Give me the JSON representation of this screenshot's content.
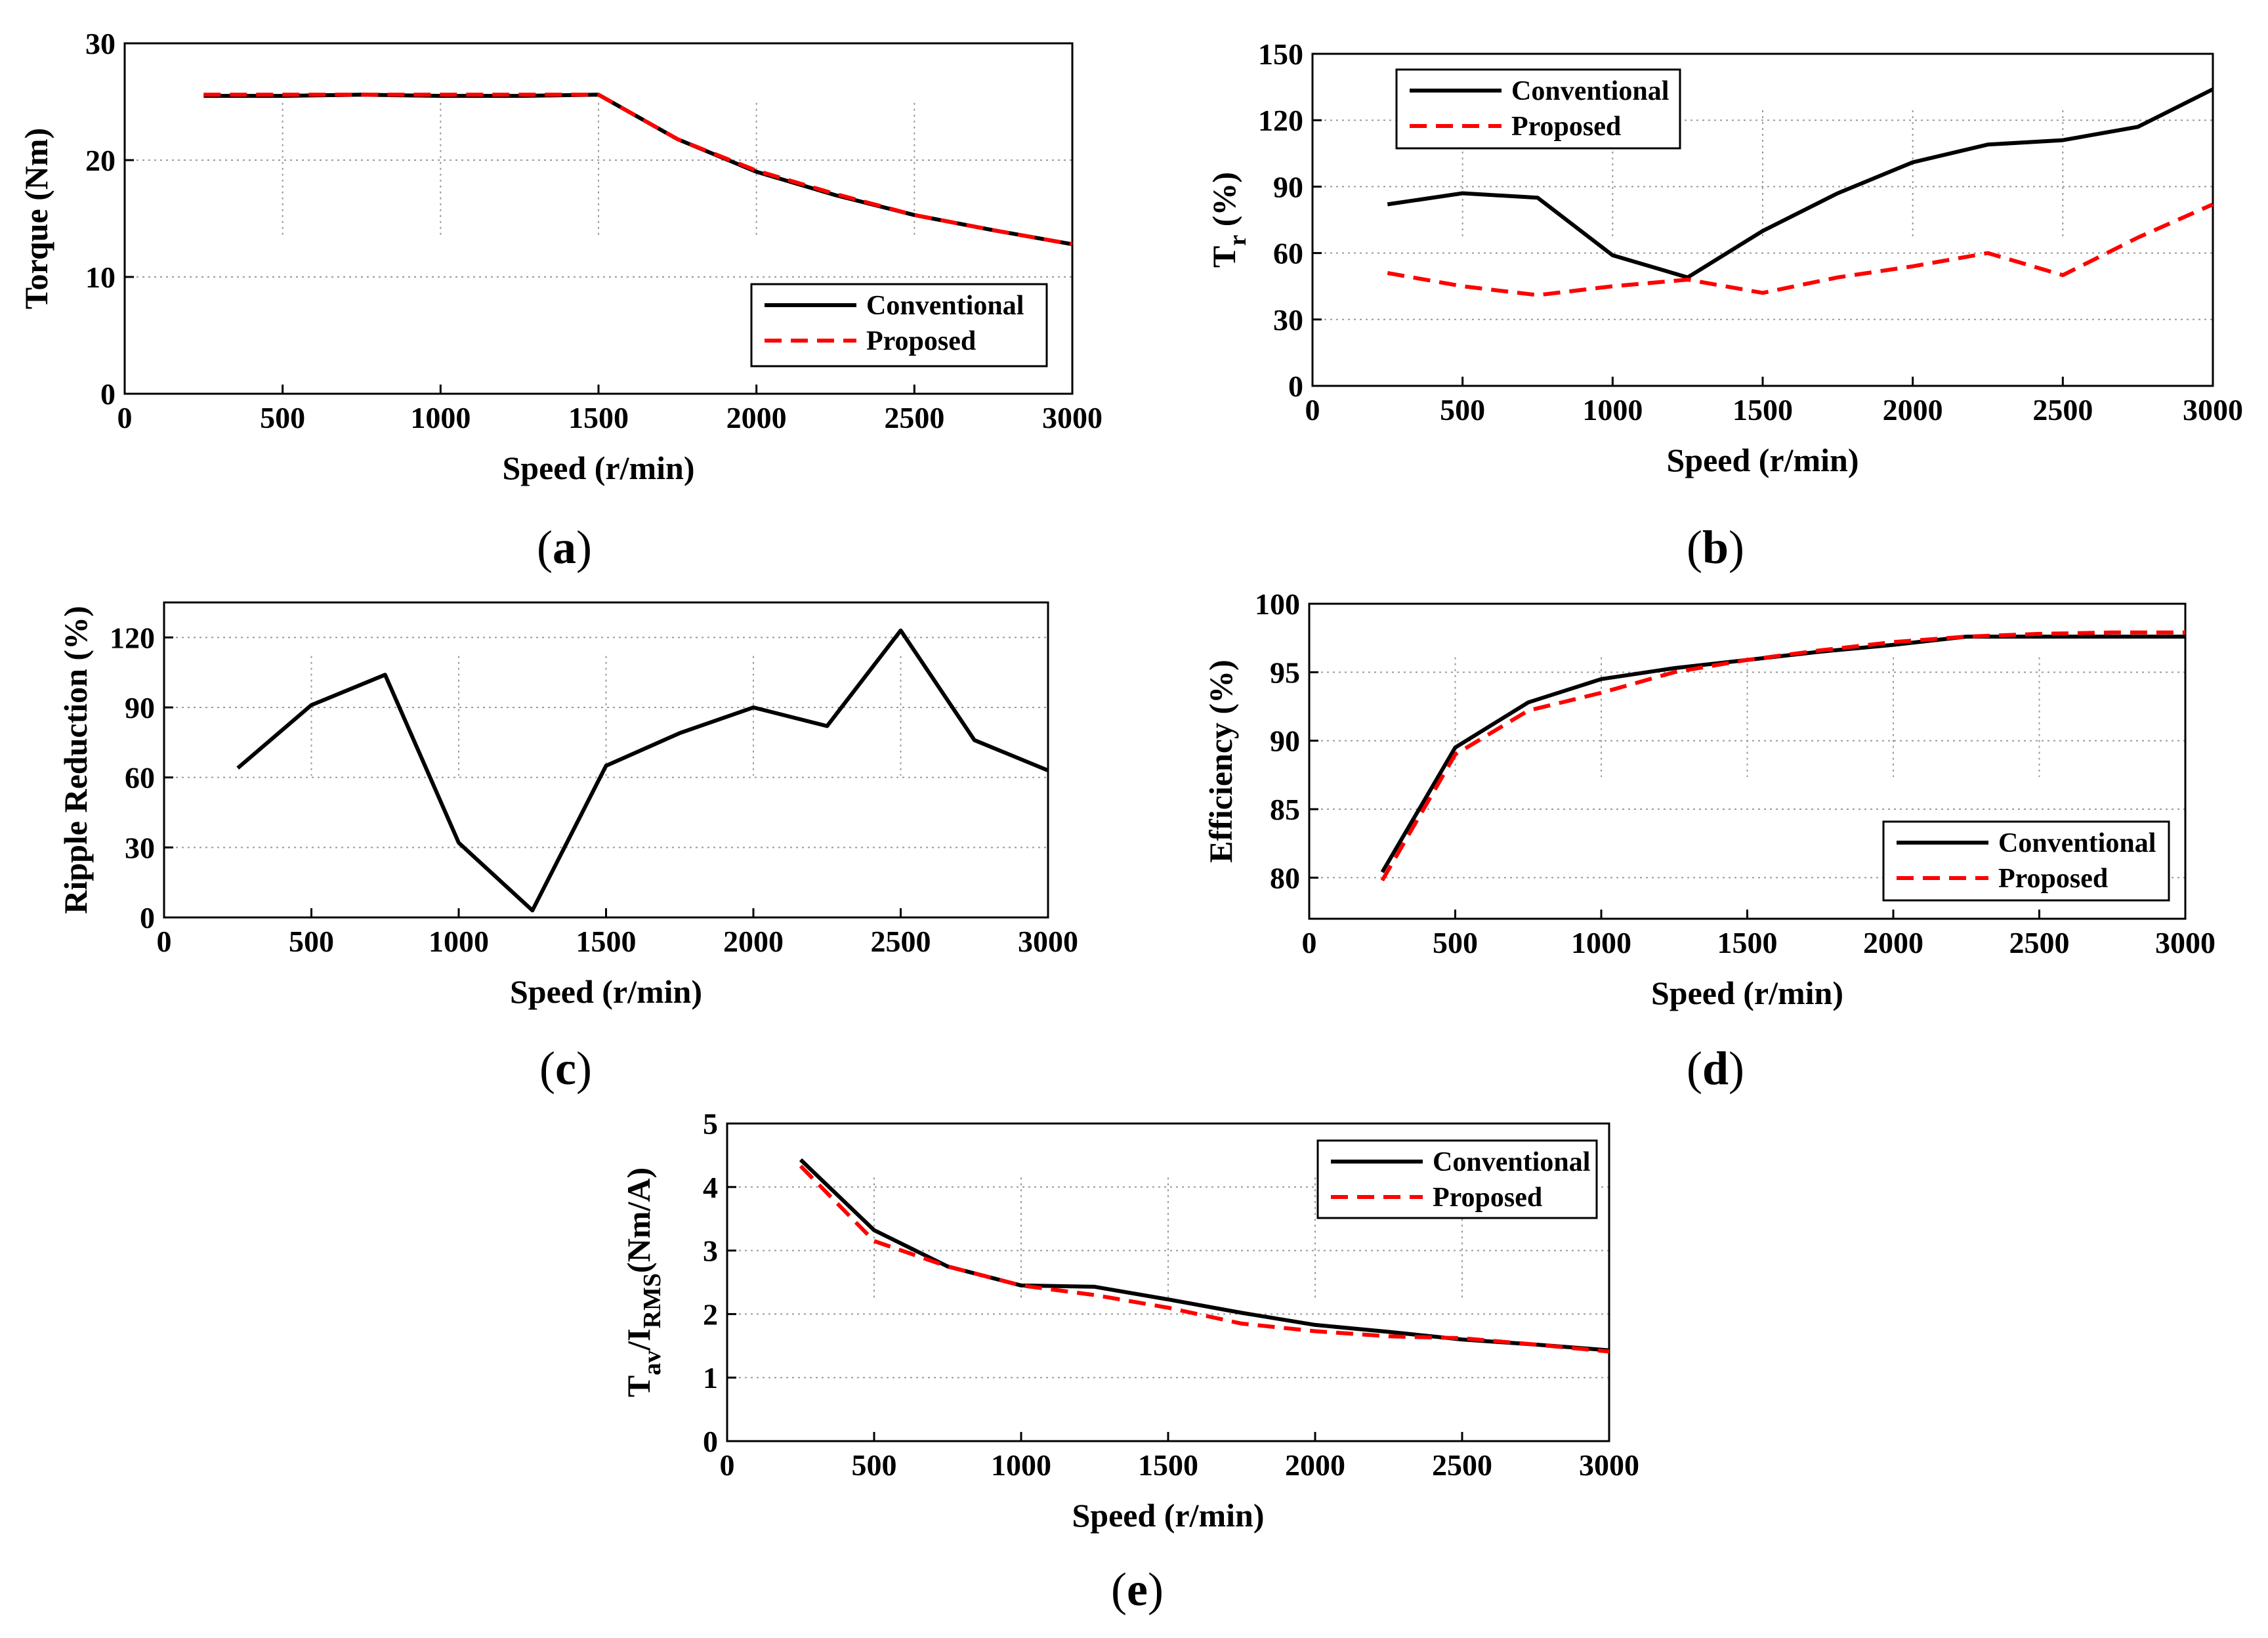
{
  "figure": {
    "colors": {
      "conventional": "#000000",
      "proposed": "#ff0000",
      "grid": "#999999",
      "axis": "#000000"
    }
  },
  "chart_data": [
    {
      "id": "a",
      "caption_letter": "a",
      "type": "line",
      "xlabel": "Speed (r/min)",
      "ylabel": "Torque (Nm)",
      "xlim": [
        0,
        3000
      ],
      "ylim": [
        0,
        30
      ],
      "xticks": [
        "0",
        "500",
        "1000",
        "1500",
        "2000",
        "2500",
        "3000"
      ],
      "yticks": [
        "0",
        "10",
        "20",
        "30"
      ],
      "legend": {
        "position": "bottom-right",
        "entries": [
          "Conventional",
          "Proposed"
        ]
      },
      "x": [
        250,
        500,
        750,
        1000,
        1250,
        1500,
        1750,
        2000,
        2250,
        2500,
        2750,
        3000
      ],
      "series": [
        {
          "name": "Conventional",
          "values": [
            25.5,
            25.5,
            25.6,
            25.5,
            25.5,
            25.6,
            21.8,
            19.0,
            17.0,
            15.3,
            14.0,
            12.8
          ]
        },
        {
          "name": "Proposed",
          "values": [
            25.6,
            25.6,
            25.6,
            25.6,
            25.6,
            25.6,
            21.8,
            19.1,
            17.1,
            15.3,
            14.0,
            12.8
          ]
        }
      ]
    },
    {
      "id": "b",
      "caption_letter": "b",
      "type": "line",
      "xlabel": "Speed (r/min)",
      "ylabel_main": "T",
      "ylabel_sub": "r",
      "ylabel_rest": "  (%)",
      "xlim": [
        0,
        3000
      ],
      "ylim": [
        0,
        150
      ],
      "xticks": [
        "0",
        "500",
        "1000",
        "1500",
        "2000",
        "2500",
        "3000"
      ],
      "yticks": [
        "0",
        "30",
        "60",
        "90",
        "120",
        "150"
      ],
      "legend": {
        "position": "top-left",
        "entries": [
          "Conventional",
          "Proposed"
        ]
      },
      "x": [
        250,
        500,
        750,
        1000,
        1250,
        1500,
        1750,
        2000,
        2250,
        2500,
        2750,
        3000
      ],
      "series": [
        {
          "name": "Conventional",
          "values": [
            82,
            87,
            85,
            59,
            49,
            70,
            87,
            101,
            109,
            111,
            117,
            134
          ]
        },
        {
          "name": "Proposed",
          "values": [
            51,
            45,
            41,
            45,
            48,
            42,
            49,
            54,
            60,
            50,
            67,
            82
          ]
        }
      ]
    },
    {
      "id": "c",
      "caption_letter": "c",
      "type": "line",
      "xlabel": "Speed (r/min)",
      "ylabel": "Ripple Reduction (%)",
      "xlim": [
        0,
        3000
      ],
      "ylim": [
        0,
        135
      ],
      "xticks": [
        "0",
        "500",
        "1000",
        "1500",
        "2000",
        "2500",
        "3000"
      ],
      "yticks": [
        "0",
        "30",
        "60",
        "90",
        "120"
      ],
      "ytick_values": [
        0,
        30,
        60,
        90,
        120
      ],
      "x": [
        250,
        500,
        750,
        1000,
        1250,
        1500,
        1750,
        2000,
        2250,
        2500,
        2750,
        3000
      ],
      "series": [
        {
          "name": "Ripple Reduction",
          "values": [
            64,
            91,
            104,
            32,
            3,
            65,
            79,
            90,
            82,
            123,
            76,
            63
          ]
        }
      ]
    },
    {
      "id": "d",
      "caption_letter": "d",
      "type": "line",
      "xlabel": "Speed (r/min)",
      "ylabel": "Efficiency (%)",
      "xlim": [
        0,
        3000
      ],
      "ylim": [
        77,
        100
      ],
      "xticks": [
        "0",
        "500",
        "1000",
        "1500",
        "2000",
        "2500",
        "3000"
      ],
      "yticks": [
        "80",
        "85",
        "90",
        "95",
        "100"
      ],
      "ytick_values": [
        80,
        85,
        90,
        95,
        100
      ],
      "legend": {
        "position": "bottom-right",
        "entries": [
          "Conventional",
          "Proposed"
        ]
      },
      "x": [
        250,
        500,
        750,
        1000,
        1250,
        1500,
        1750,
        2000,
        2250,
        2500,
        2750,
        3000
      ],
      "series": [
        {
          "name": "Conventional",
          "values": [
            80.4,
            89.5,
            92.8,
            94.5,
            95.3,
            95.9,
            96.5,
            97.0,
            97.6,
            97.6,
            97.6,
            97.6
          ]
        },
        {
          "name": "Proposed",
          "values": [
            79.8,
            89.0,
            92.2,
            93.5,
            95.0,
            95.9,
            96.6,
            97.2,
            97.6,
            97.8,
            97.9,
            97.9
          ]
        }
      ]
    },
    {
      "id": "e",
      "caption_letter": "e",
      "type": "line",
      "xlabel": "Speed (r/min)",
      "ylabel_main1": "T",
      "ylabel_sub1": "av",
      "ylabel_main2": "/I",
      "ylabel_sub2": "RMS",
      "ylabel_rest": "(Nm/A)",
      "xlim": [
        0,
        3000
      ],
      "ylim": [
        0,
        5
      ],
      "xticks": [
        "0",
        "500",
        "1000",
        "1500",
        "2000",
        "2500",
        "3000"
      ],
      "yticks": [
        "0",
        "1",
        "2",
        "3",
        "4",
        "5"
      ],
      "legend": {
        "position": "top-right",
        "entries": [
          "Conventional",
          "Proposed"
        ]
      },
      "x": [
        250,
        500,
        750,
        1000,
        1250,
        1500,
        1750,
        2000,
        2250,
        2500,
        2750,
        3000
      ],
      "series": [
        {
          "name": "Conventional",
          "values": [
            4.43,
            3.32,
            2.75,
            2.45,
            2.43,
            2.23,
            2.02,
            1.83,
            1.72,
            1.6,
            1.52,
            1.43
          ]
        },
        {
          "name": "Proposed",
          "values": [
            4.33,
            3.15,
            2.75,
            2.45,
            2.3,
            2.1,
            1.85,
            1.73,
            1.65,
            1.62,
            1.52,
            1.41
          ]
        }
      ]
    }
  ]
}
